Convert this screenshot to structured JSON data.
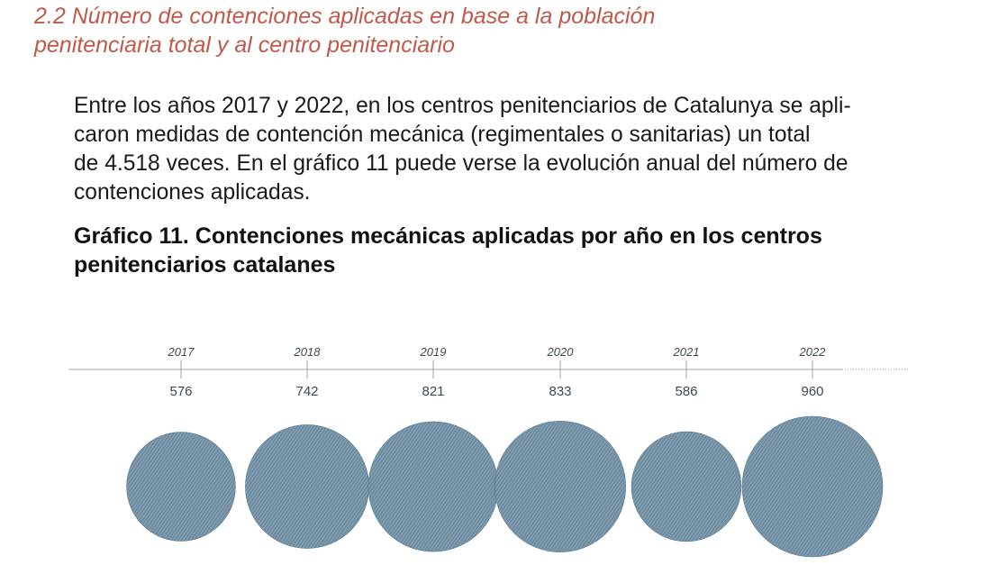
{
  "section": {
    "heading_line1": "2.2 Número de contenciones aplicadas en base a la población",
    "heading_line2": "penitenciaria total y al centro penitenciario"
  },
  "paragraph": {
    "line1": "Entre los años 2017 y 2022, en los centros penitenciarios de Catalunya se apli-",
    "line2": "caron medidas de contención mecánica (regimentales o sanitarias) un total",
    "line3": "de 4.518 veces. En el gráfico 11 puede verse la evolución anual del número de",
    "line4": "contenciones aplicadas."
  },
  "chart_title": {
    "line1": "Gráfico 11. Contenciones mecánicas aplicadas por año en los centros",
    "line2": "penitenciarios catalanes"
  },
  "colors": {
    "bubble": "#6f8da2",
    "bubble_dark": "#55748a",
    "axis": "#9aa6ae",
    "heading": "#c0594a"
  },
  "chart_data": {
    "type": "bubble-timeline",
    "title": "Gráfico 11. Contenciones mecánicas aplicadas por año en los centros penitenciarios catalanes",
    "categories": [
      "2017",
      "2018",
      "2019",
      "2020",
      "2021",
      "2022"
    ],
    "values": [
      576,
      742,
      821,
      833,
      586,
      960
    ],
    "value_labels": [
      "576",
      "742",
      "821",
      "833",
      "586",
      "960"
    ],
    "xlabel": "",
    "ylabel": "",
    "encoding": "circle area proportional to value"
  }
}
